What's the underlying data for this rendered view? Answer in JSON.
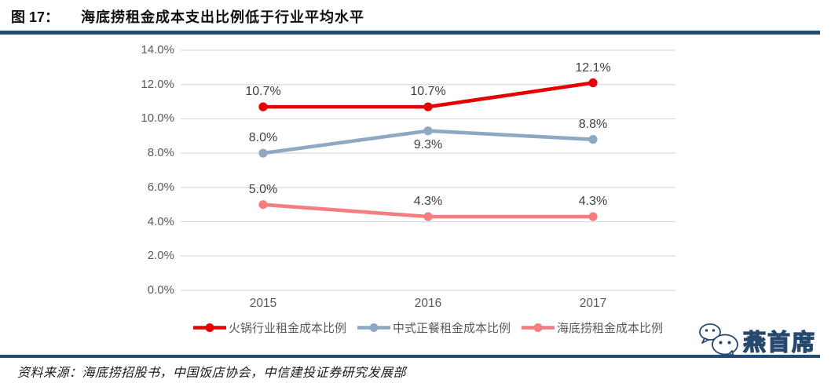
{
  "figure": {
    "label": "图 17：",
    "title": "海底捞租金成本支出比例低于行业平均水平"
  },
  "source": {
    "text": "资料来源：海底捞招股书，中国饭店协会，中信建投证券研究发展部"
  },
  "watermark": {
    "icon": "wechat-bubbles-icon",
    "text": "燕首席"
  },
  "colors": {
    "accent_rule": "#1b4e79",
    "grid": "#d9d9d9",
    "axis_text": "#595959",
    "data_label_text": "#3f3f3f"
  },
  "chart_data": {
    "type": "line",
    "title": "海底捞租金成本支出比例低于行业平均水平",
    "categories": [
      "2015",
      "2016",
      "2017"
    ],
    "series": [
      {
        "name": "火锅行业租金成本比例",
        "color": "#e60000",
        "values": [
          10.7,
          10.7,
          12.1
        ],
        "labels": [
          "10.7%",
          "10.7%",
          "12.1%"
        ],
        "label_positions": [
          "above",
          "above",
          "above"
        ]
      },
      {
        "name": "中式正餐租金成本比例",
        "color": "#8ea8c3",
        "values": [
          8.0,
          9.3,
          8.8
        ],
        "labels": [
          "8.0%",
          "9.3%",
          "8.8%"
        ],
        "label_positions": [
          "above",
          "below",
          "above"
        ]
      },
      {
        "name": "海底捞租金成本比例",
        "color": "#f47d80",
        "values": [
          5.0,
          4.3,
          4.3
        ],
        "labels": [
          "5.0%",
          "4.3%",
          "4.3%"
        ],
        "label_positions": [
          "above",
          "above",
          "above"
        ]
      }
    ],
    "xlabel": "",
    "ylabel": "",
    "ylim": [
      0,
      14
    ],
    "ytick_step": 2,
    "yticks": [
      "0.0%",
      "2.0%",
      "4.0%",
      "6.0%",
      "8.0%",
      "10.0%",
      "12.0%",
      "14.0%"
    ],
    "grid": true,
    "legend_position": "bottom"
  }
}
